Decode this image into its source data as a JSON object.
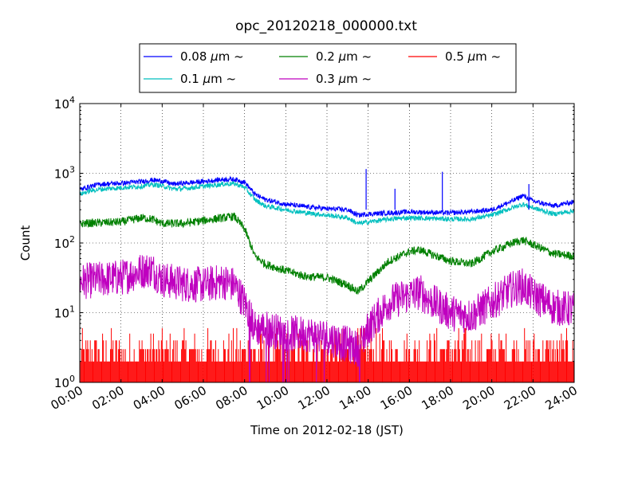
{
  "chart_data": {
    "type": "line",
    "title": "opc_20120218_000000.txt",
    "xlabel": "Time on 2012-02-18 (JST)",
    "ylabel": "Count",
    "y_scale": "log",
    "ylim": [
      1,
      10000
    ],
    "xlim": [
      "00:00",
      "24:00"
    ],
    "grid": true,
    "legend_position": "top-center",
    "x_ticks": [
      "00:00",
      "02:00",
      "04:00",
      "06:00",
      "08:00",
      "10:00",
      "12:00",
      "14:00",
      "16:00",
      "18:00",
      "20:00",
      "22:00",
      "24:00"
    ],
    "x_tick_hours": [
      0,
      2,
      4,
      6,
      8,
      10,
      12,
      14,
      16,
      18,
      20,
      22,
      24
    ],
    "y_ticks": [
      {
        "base": "10",
        "exp": "0",
        "value": 1
      },
      {
        "base": "10",
        "exp": "1",
        "value": 10
      },
      {
        "base": "10",
        "exp": "2",
        "value": 100
      },
      {
        "base": "10",
        "exp": "3",
        "value": 1000
      },
      {
        "base": "10",
        "exp": "4",
        "value": 10000
      }
    ],
    "series": [
      {
        "name": "0.08",
        "unit": "μm",
        "suffix": "~",
        "color": "#0000ff",
        "noise": 0.035,
        "points": [
          [
            0,
            580
          ],
          [
            0.5,
            650
          ],
          [
            1,
            700
          ],
          [
            2,
            720
          ],
          [
            3,
            760
          ],
          [
            3.5,
            800
          ],
          [
            4,
            780
          ],
          [
            4.5,
            700
          ],
          [
            5,
            720
          ],
          [
            6,
            760
          ],
          [
            7,
            820
          ],
          [
            7.5,
            820
          ],
          [
            8,
            750
          ],
          [
            8.5,
            500
          ],
          [
            9,
            420
          ],
          [
            10,
            360
          ],
          [
            11,
            330
          ],
          [
            12,
            310
          ],
          [
            13,
            300
          ],
          [
            13.5,
            250
          ],
          [
            14,
            260
          ],
          [
            15,
            270
          ],
          [
            16,
            280
          ],
          [
            17,
            275
          ],
          [
            18,
            270
          ],
          [
            19,
            280
          ],
          [
            20,
            300
          ],
          [
            21,
            400
          ],
          [
            21.5,
            480
          ],
          [
            22,
            400
          ],
          [
            23,
            340
          ],
          [
            24,
            390
          ]
        ]
      },
      {
        "name": "0.1",
        "unit": "μm",
        "suffix": "~",
        "color": "#00bfbf",
        "noise": 0.035,
        "points": [
          [
            0,
            500
          ],
          [
            0.5,
            560
          ],
          [
            1,
            590
          ],
          [
            2,
            620
          ],
          [
            3,
            650
          ],
          [
            3.5,
            690
          ],
          [
            4,
            660
          ],
          [
            4.5,
            600
          ],
          [
            5,
            600
          ],
          [
            6,
            650
          ],
          [
            7,
            700
          ],
          [
            7.5,
            710
          ],
          [
            8,
            630
          ],
          [
            8.5,
            420
          ],
          [
            9,
            340
          ],
          [
            10,
            300
          ],
          [
            11,
            270
          ],
          [
            12,
            250
          ],
          [
            13,
            230
          ],
          [
            13.5,
            190
          ],
          [
            14,
            200
          ],
          [
            15,
            220
          ],
          [
            16,
            230
          ],
          [
            17,
            225
          ],
          [
            18,
            220
          ],
          [
            19,
            220
          ],
          [
            20,
            250
          ],
          [
            21,
            320
          ],
          [
            21.5,
            360
          ],
          [
            22,
            320
          ],
          [
            23,
            260
          ],
          [
            24,
            290
          ]
        ]
      },
      {
        "name": "0.2",
        "unit": "μm",
        "suffix": "~",
        "color": "#008000",
        "noise": 0.06,
        "points": [
          [
            0,
            190
          ],
          [
            1,
            195
          ],
          [
            2,
            200
          ],
          [
            3,
            230
          ],
          [
            3.5,
            220
          ],
          [
            4,
            190
          ],
          [
            5,
            190
          ],
          [
            6,
            210
          ],
          [
            7,
            230
          ],
          [
            7.5,
            240
          ],
          [
            8,
            160
          ],
          [
            8.5,
            65
          ],
          [
            9,
            50
          ],
          [
            10,
            40
          ],
          [
            11,
            33
          ],
          [
            12,
            32
          ],
          [
            13,
            25
          ],
          [
            13.5,
            20
          ],
          [
            14,
            28
          ],
          [
            15,
            55
          ],
          [
            16,
            75
          ],
          [
            16.5,
            80
          ],
          [
            17,
            70
          ],
          [
            18,
            55
          ],
          [
            19,
            50
          ],
          [
            20,
            75
          ],
          [
            21,
            100
          ],
          [
            21.5,
            110
          ],
          [
            22,
            95
          ],
          [
            23,
            70
          ],
          [
            24,
            65
          ]
        ]
      },
      {
        "name": "0.3",
        "unit": "μm",
        "suffix": "~",
        "color": "#bf00bf",
        "noise": 0.12,
        "points": [
          [
            0,
            28
          ],
          [
            1,
            30
          ],
          [
            2,
            32
          ],
          [
            3,
            40
          ],
          [
            3.5,
            42
          ],
          [
            4,
            30
          ],
          [
            5,
            26
          ],
          [
            6,
            25
          ],
          [
            7,
            28
          ],
          [
            7.5,
            25
          ],
          [
            8,
            14
          ],
          [
            8.5,
            6
          ],
          [
            9,
            6
          ],
          [
            10,
            5
          ],
          [
            11,
            5
          ],
          [
            12,
            4.5
          ],
          [
            13,
            3.5
          ],
          [
            13.5,
            3
          ],
          [
            14,
            6
          ],
          [
            15,
            14
          ],
          [
            16,
            18
          ],
          [
            16.5,
            20
          ],
          [
            17,
            15
          ],
          [
            18,
            10
          ],
          [
            19,
            9
          ],
          [
            20,
            14
          ],
          [
            21,
            22
          ],
          [
            21.5,
            24
          ],
          [
            22,
            18
          ],
          [
            23,
            12
          ],
          [
            24,
            11
          ]
        ]
      },
      {
        "name": "0.5",
        "unit": "μm",
        "suffix": "~",
        "color": "#ff0000",
        "noise": 0,
        "points": [
          [
            0,
            1.5
          ],
          [
            24,
            1.5
          ]
        ]
      }
    ]
  }
}
